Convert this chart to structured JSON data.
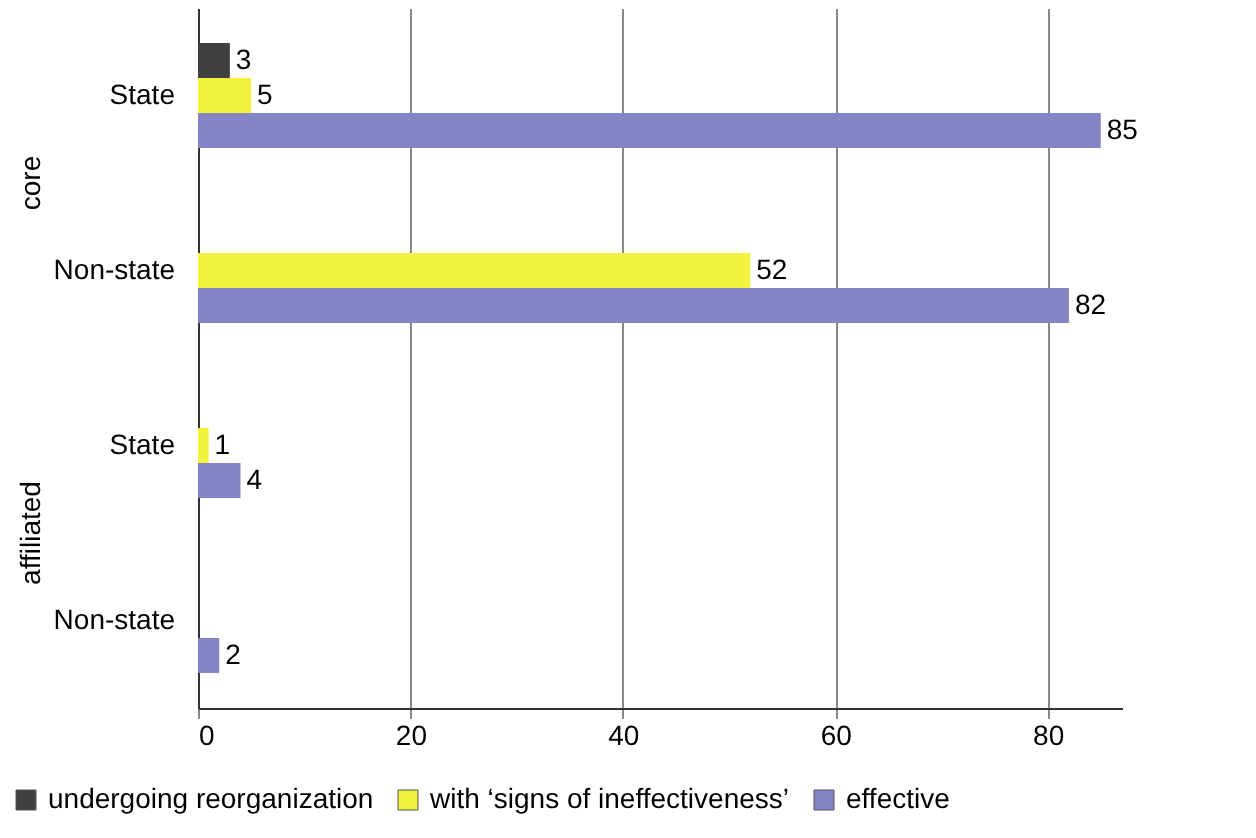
{
  "chart_data": {
    "type": "bar",
    "orientation": "horizontal",
    "categories": [
      "State",
      "Non-state",
      "State",
      "Non-state"
    ],
    "series": [
      {
        "name": "undergoing reorganization",
        "color": "#404040",
        "values": [
          3,
          null,
          null,
          null
        ]
      },
      {
        "name": "with ‘signs of ineffectiveness’",
        "color": "#f2f23c",
        "values": [
          5,
          52,
          1,
          null
        ]
      },
      {
        "name": "effective",
        "color": "#8585c5",
        "values": [
          85,
          82,
          4,
          2
        ]
      }
    ],
    "annotations": [
      "core",
      "affiliated"
    ],
    "xlim": [
      0,
      87
    ],
    "xticks": [
      0,
      20,
      40,
      60,
      80
    ],
    "grid": "x",
    "legend": "bottom",
    "data_labels": true
  }
}
